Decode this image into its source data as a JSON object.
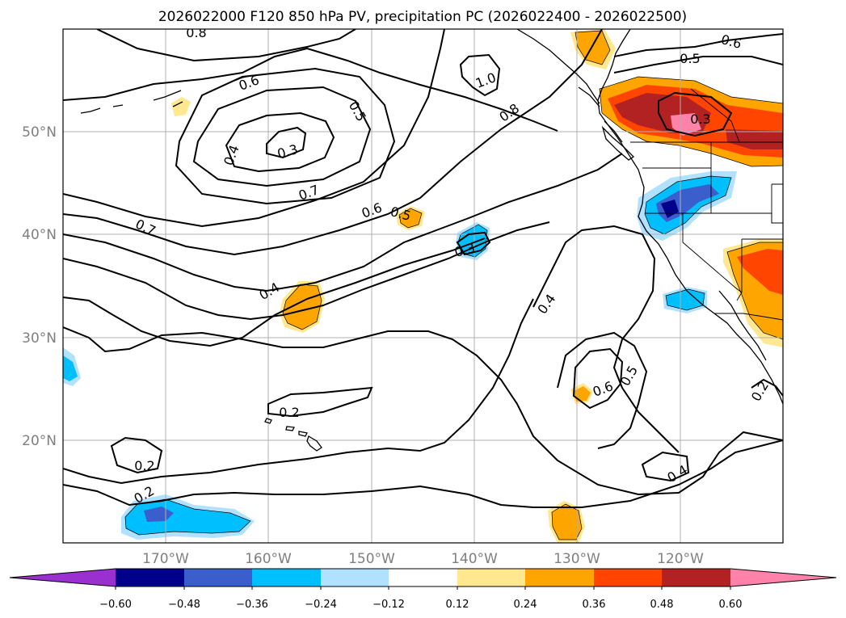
{
  "title": "2026022000 F120 850 hPa PV, precipitation PC (2026022400 - 2026022500)",
  "lat_labels": [
    "50°N",
    "40°N",
    "30°N",
    "20°N"
  ],
  "lon_labels": [
    "170°W",
    "160°W",
    "150°W",
    "140°W",
    "130°W",
    "120°W"
  ],
  "contour_labels": [
    "0.8",
    "0.6",
    "0.5",
    "0.4",
    "0.3",
    "0.7",
    "0.7",
    "0.6",
    "0.5",
    "1.0",
    "0.8",
    "0.6",
    "0.5",
    "0.3",
    "0.3",
    "0.4",
    "0.4",
    "0.2",
    "0.2",
    "0.2",
    "0.6",
    "0.5",
    "0.4",
    "0.2"
  ],
  "colorbar": {
    "ticks": [
      "−0.60",
      "−0.48",
      "−0.36",
      "−0.24",
      "−0.12",
      "0.12",
      "0.24",
      "0.36",
      "0.48",
      "0.60"
    ],
    "colors": [
      "#9b30d0",
      "#00008b",
      "#3a5fcd",
      "#00bfff",
      "#b0e2ff",
      "#ffffff",
      "#ffe88f",
      "#ffa500",
      "#ff4500",
      "#b22222",
      "#ff82ab",
      "#ff82ab"
    ]
  },
  "chart_data": {
    "type": "map",
    "title": "2026022000 F120 850 hPa PV, precipitation PC (2026022400 - 2026022500)",
    "lon_range": [
      -180,
      -110
    ],
    "lat_range": [
      10,
      60
    ],
    "contour_variable": "850 hPa PV",
    "contour_levels": [
      0.2,
      0.3,
      0.4,
      0.5,
      0.6,
      0.7,
      0.8,
      1.0
    ],
    "shading_variable": "precipitation PC",
    "shading_levels": [
      -0.6,
      -0.48,
      -0.36,
      -0.24,
      -0.12,
      0.12,
      0.24,
      0.36,
      0.48,
      0.6
    ],
    "features": [
      {
        "name": "PV minimum",
        "value": 0.3,
        "lon": -159.5,
        "lat": 48
      },
      {
        "name": "PV minimum",
        "value": 0.3,
        "lon": -140,
        "lat": 38.5
      },
      {
        "name": "PV maximum",
        "value": 1.0,
        "lon": -139,
        "lat": 56
      }
    ]
  }
}
